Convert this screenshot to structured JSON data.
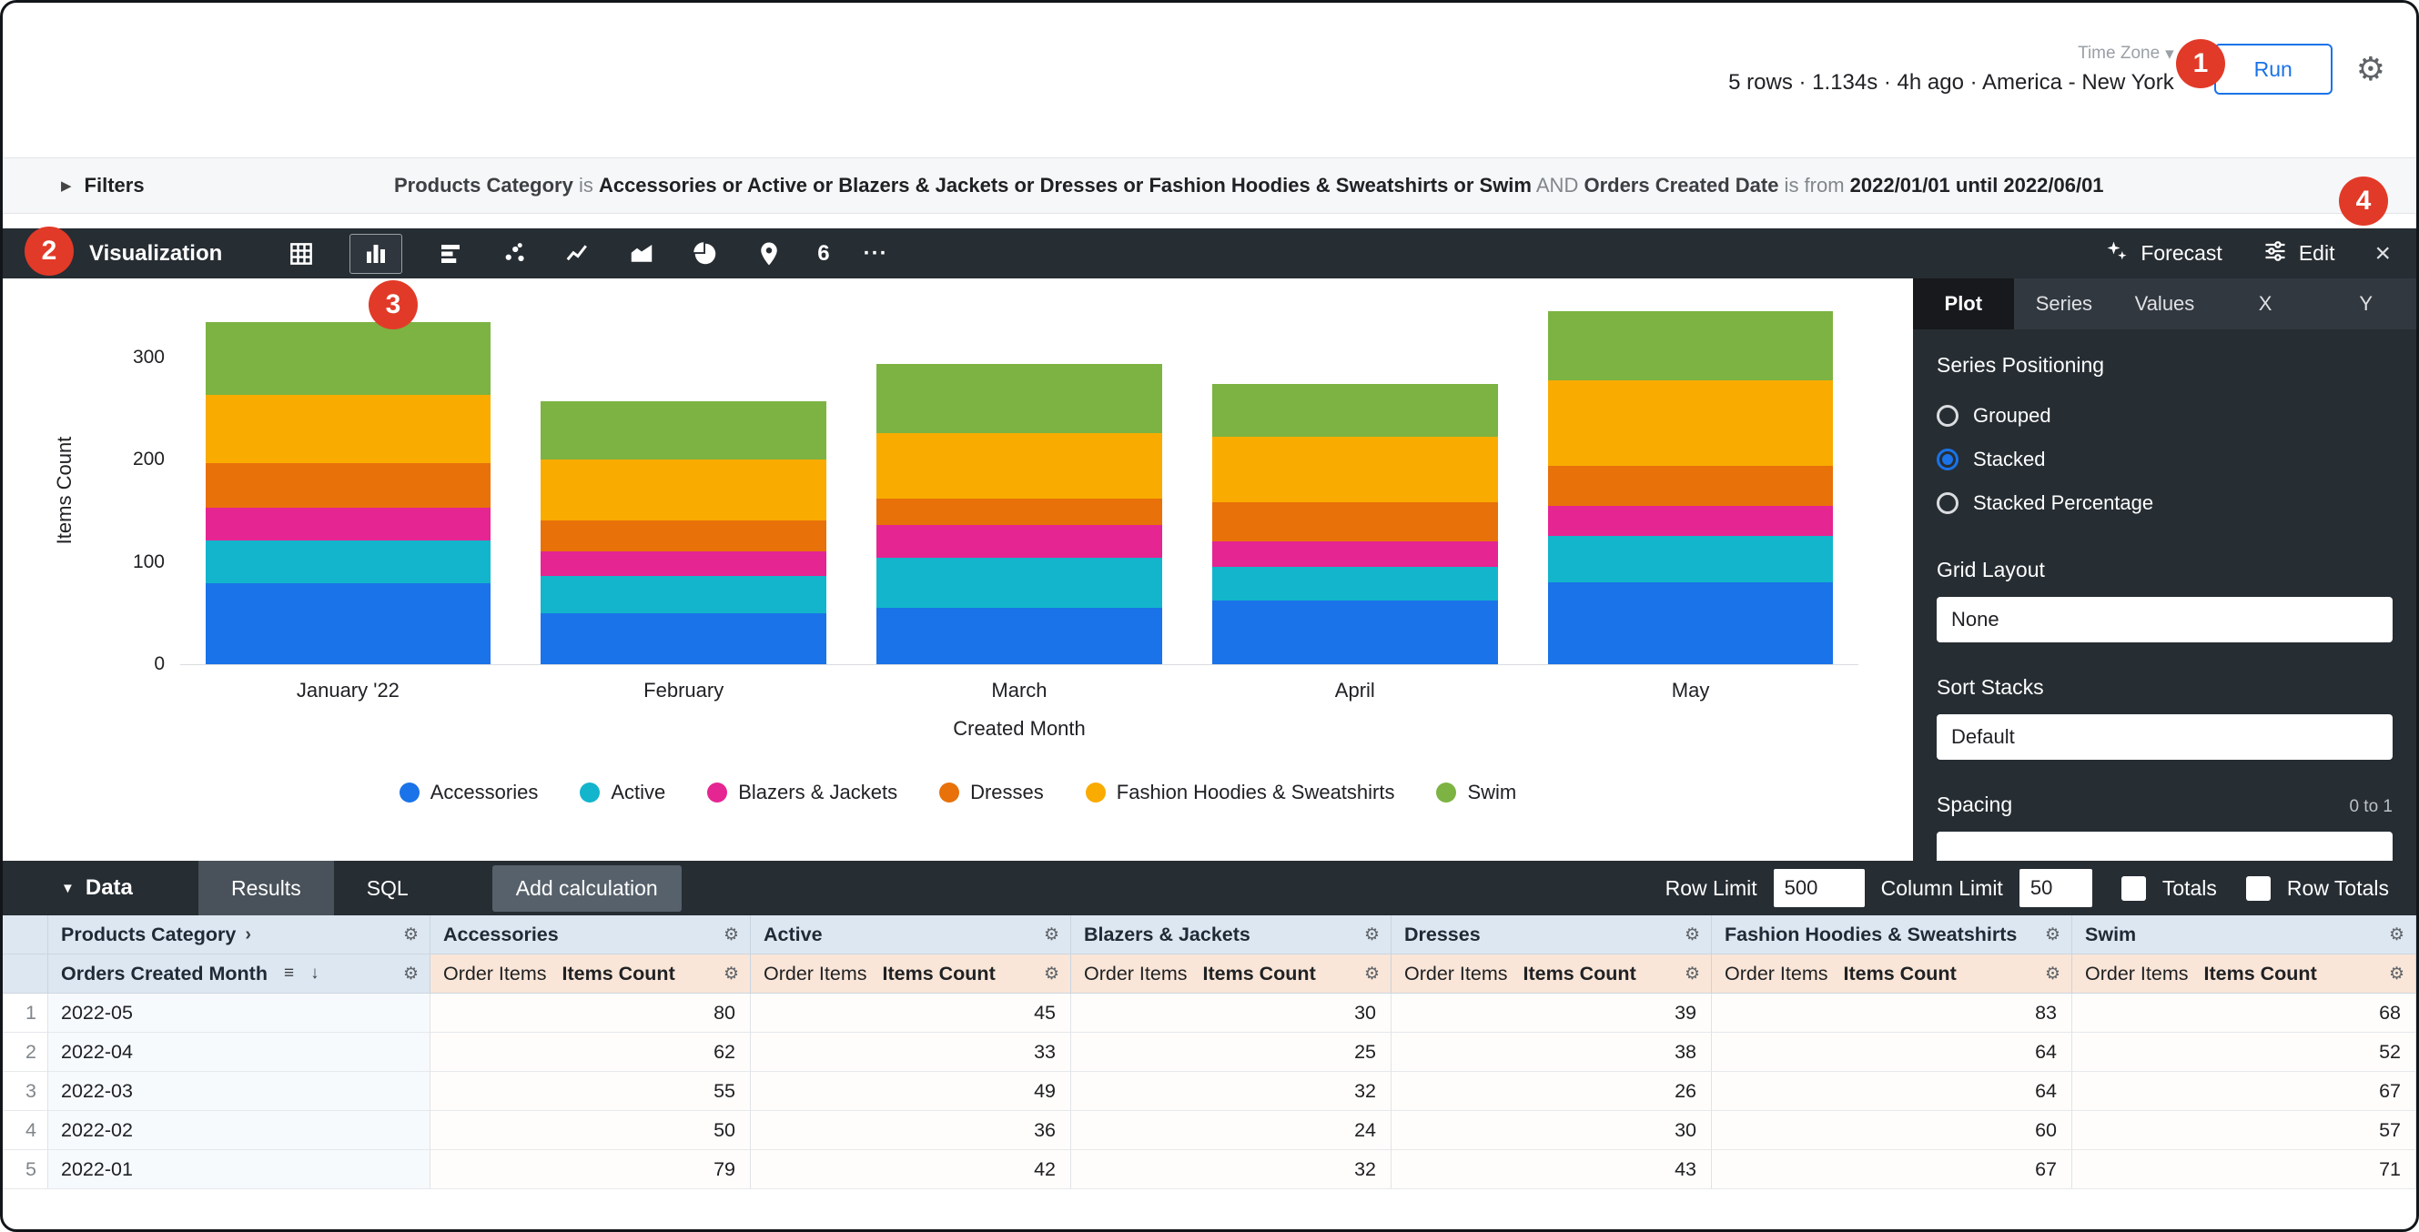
{
  "colors": {
    "accent_blue": "#1a73e8",
    "annotation_red": "#e23a28",
    "dark_bar": "#262d33"
  },
  "icons": {
    "gear": "⚙",
    "caret_right": "▶",
    "caret_down": "▼",
    "chevron_down": "▾",
    "sort_rows": "≡",
    "arrow_down": "↓",
    "pivot_chevron": "›",
    "close": "×",
    "more": "···"
  },
  "header": {
    "time_zone_label": "Time Zone",
    "stats_text": "5 rows · 1.134s · 4h ago · America - New York",
    "run_label": "Run"
  },
  "annotations": [
    "1",
    "2",
    "3",
    "4"
  ],
  "filters_bar": {
    "title": "Filters",
    "segments": [
      {
        "text": "Products Category",
        "style": "field"
      },
      {
        "text": " is ",
        "style": "muted"
      },
      {
        "text": "Accessories or Active or Blazers & Jackets or Dresses or Fashion Hoodies & Sweatshirts or Swim",
        "style": "value"
      },
      {
        "text": " AND ",
        "style": "muted"
      },
      {
        "text": "Orders Created Date",
        "style": "field"
      },
      {
        "text": " is from ",
        "style": "muted"
      },
      {
        "text": "2022/01/01 until 2022/06/01",
        "style": "value"
      }
    ]
  },
  "viz_bar": {
    "title": "Visualization",
    "chart_types": [
      {
        "icon": "table-icon",
        "selected": false
      },
      {
        "icon": "column-chart-icon",
        "selected": true
      },
      {
        "icon": "bar-chart-icon",
        "selected": false
      },
      {
        "icon": "scatter-icon",
        "selected": false
      },
      {
        "icon": "line-chart-icon",
        "selected": false
      },
      {
        "icon": "area-chart-icon",
        "selected": false
      },
      {
        "icon": "pie-chart-icon",
        "selected": false
      },
      {
        "icon": "map-icon",
        "selected": false
      },
      {
        "icon": "single-value-icon",
        "selected": false,
        "label": "6"
      },
      {
        "icon": "more-icon",
        "selected": false,
        "label": "···"
      }
    ],
    "forecast_label": "Forecast",
    "edit_label": "Edit",
    "close_label": "×"
  },
  "edit_panel": {
    "tabs": [
      {
        "label": "Plot",
        "selected": true
      },
      {
        "label": "Series",
        "selected": false
      },
      {
        "label": "Values",
        "selected": false
      },
      {
        "label": "X",
        "selected": false
      },
      {
        "label": "Y",
        "selected": false
      }
    ],
    "series_positioning_title": "Series Positioning",
    "radio_options": [
      {
        "label": "Grouped",
        "selected": false
      },
      {
        "label": "Stacked",
        "selected": true
      },
      {
        "label": "Stacked Percentage",
        "selected": false
      }
    ],
    "grid_layout_label": "Grid Layout",
    "grid_layout_value": "None",
    "sort_stacks_label": "Sort Stacks",
    "sort_stacks_value": "Default",
    "spacing_label": "Spacing",
    "spacing_hint": "0 to 1"
  },
  "chart_data": {
    "type": "bar",
    "stacked": true,
    "categories": [
      "January '22",
      "February",
      "March",
      "April",
      "May"
    ],
    "series": [
      {
        "name": "Accessories",
        "color": "#1a73e8",
        "values": [
          79,
          50,
          55,
          62,
          80
        ]
      },
      {
        "name": "Active",
        "color": "#12b5cb",
        "values": [
          42,
          36,
          49,
          33,
          45
        ]
      },
      {
        "name": "Blazers & Jackets",
        "color": "#e52592",
        "values": [
          32,
          24,
          32,
          25,
          30
        ]
      },
      {
        "name": "Dresses",
        "color": "#e8710a",
        "values": [
          43,
          30,
          26,
          38,
          39
        ]
      },
      {
        "name": "Fashion Hoodies & Sweatshirts",
        "color": "#f9ab00",
        "values": [
          67,
          60,
          64,
          64,
          83
        ]
      },
      {
        "name": "Swim",
        "color": "#7cb342",
        "values": [
          71,
          57,
          67,
          52,
          68
        ]
      }
    ],
    "xlabel": "Created Month",
    "ylabel": "Items Count",
    "yticks": [
      0,
      100,
      200,
      300
    ],
    "ylim": [
      0,
      360
    ],
    "legend_position": "bottom",
    "grid": false
  },
  "data_bar": {
    "title": "Data",
    "tabs": [
      {
        "label": "Results",
        "selected": true
      },
      {
        "label": "SQL",
        "selected": false
      }
    ],
    "add_calculation_label": "Add calculation",
    "row_limit_label": "Row Limit",
    "row_limit_value": "500",
    "column_limit_label": "Column Limit",
    "column_limit_value": "50",
    "totals_label": "Totals",
    "totals_checked": false,
    "row_totals_label": "Row Totals",
    "row_totals_checked": false
  },
  "table": {
    "pivot_header": "Products Category",
    "dimension_header": "Orders Created Month",
    "measure_view_label": "Order Items",
    "measure_field_label": "Items Count",
    "pivot_values": [
      "Accessories",
      "Active",
      "Blazers & Jackets",
      "Dresses",
      "Fashion Hoodies & Sweatshirts",
      "Swim"
    ],
    "rows": [
      {
        "index": "1",
        "dimension": "2022-05",
        "values": [
          "80",
          "45",
          "30",
          "39",
          "83",
          "68"
        ]
      },
      {
        "index": "2",
        "dimension": "2022-04",
        "values": [
          "62",
          "33",
          "25",
          "38",
          "64",
          "52"
        ]
      },
      {
        "index": "3",
        "dimension": "2022-03",
        "values": [
          "55",
          "49",
          "32",
          "26",
          "64",
          "67"
        ]
      },
      {
        "index": "4",
        "dimension": "2022-02",
        "values": [
          "50",
          "36",
          "24",
          "30",
          "60",
          "57"
        ]
      },
      {
        "index": "5",
        "dimension": "2022-01",
        "values": [
          "79",
          "42",
          "32",
          "43",
          "67",
          "71"
        ]
      }
    ]
  }
}
